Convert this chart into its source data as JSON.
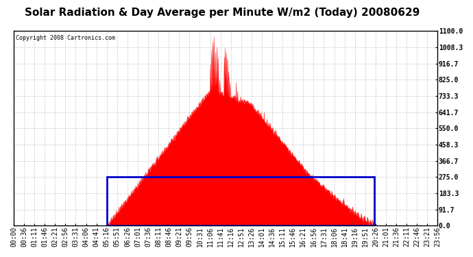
{
  "title": "Solar Radiation & Day Average per Minute W/m2 (Today) 20080629",
  "copyright": "Copyright 2008 Cartronics.com",
  "ymin": 0.0,
  "ymax": 1100.0,
  "yticks": [
    0.0,
    91.7,
    183.3,
    275.0,
    366.7,
    458.3,
    550.0,
    641.7,
    733.3,
    825.0,
    916.7,
    1008.3,
    1100.0
  ],
  "bg_color": "#ffffff",
  "plot_bg_color": "#ffffff",
  "grid_color": "#aaaaaa",
  "fill_color": "#ff0000",
  "line_color": "#ff0000",
  "avg_box_color": "#0000cc",
  "title_color": "#000000",
  "copyright_color": "#000000",
  "title_fontsize": 11,
  "tick_labels_fontsize": 7,
  "x_tick_labels": [
    "00:00",
    "00:36",
    "01:11",
    "01:46",
    "02:21",
    "02:56",
    "03:31",
    "04:06",
    "04:41",
    "05:16",
    "05:51",
    "06:26",
    "07:01",
    "07:36",
    "08:11",
    "08:46",
    "09:21",
    "09:56",
    "10:31",
    "11:06",
    "11:41",
    "12:16",
    "12:51",
    "13:26",
    "14:01",
    "14:36",
    "15:11",
    "15:46",
    "16:21",
    "16:56",
    "17:31",
    "18:06",
    "18:41",
    "19:16",
    "19:51",
    "20:26",
    "21:01",
    "21:36",
    "22:11",
    "22:46",
    "23:21",
    "23:56"
  ],
  "avg_value": 275.0,
  "num_minutes": 1440,
  "sunrise_minute": 316,
  "sunset_minute": 1226,
  "figwidth": 6.9,
  "figheight": 3.75,
  "dpi": 100
}
